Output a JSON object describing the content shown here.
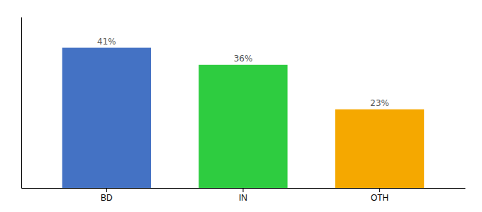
{
  "chart_data": {
    "type": "bar",
    "categories": [
      "BD",
      "IN",
      "OTH"
    ],
    "values": [
      41,
      36,
      23
    ],
    "value_labels": [
      "41%",
      "36%",
      "23%"
    ],
    "colors": [
      "#4472c4",
      "#2ecc40",
      "#f5a800"
    ],
    "ylim": [
      0,
      50
    ],
    "data_labels": true,
    "tick_labels": "x",
    "grid": false
  }
}
